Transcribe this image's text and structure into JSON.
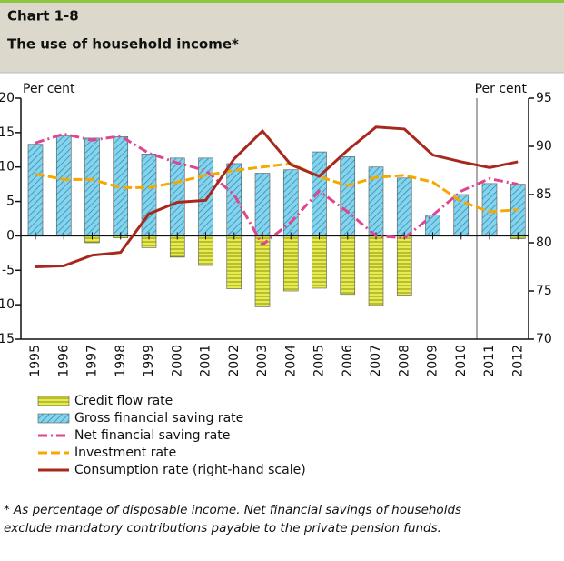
{
  "chart_data": {
    "type": "combo",
    "chart_number": "Chart 1-8",
    "title": "The use of household income*",
    "y_label": "Per cent",
    "y2_label": "Per cent",
    "footnote": [
      "* As percentage of disposable income. Net financial savings of households",
      "exclude mandatory contributions payable to the private pension funds."
    ],
    "categories": [
      "1995",
      "1996",
      "1997",
      "1998",
      "1999",
      "2000",
      "2001",
      "2002",
      "2003",
      "2004",
      "2005",
      "2006",
      "2007",
      "2008",
      "2009",
      "2010",
      "2011",
      "2012"
    ],
    "ylim": [
      -15,
      20
    ],
    "yticks": [
      -15,
      -10,
      -5,
      0,
      5,
      10,
      15,
      20
    ],
    "y2lim": [
      70,
      95
    ],
    "y2ticks": [
      70,
      75,
      80,
      85,
      90,
      95
    ],
    "series": [
      {
        "name": "Credit flow rate",
        "type": "bar",
        "color": "#e6ec4f",
        "values": [
          0.7,
          0.3,
          -1.0,
          -0.3,
          -1.7,
          -3.1,
          -4.3,
          -7.7,
          -10.3,
          -8.0,
          -7.6,
          -8.5,
          -10.1,
          -8.6,
          0.3,
          1.8,
          1.7,
          -0.4
        ]
      },
      {
        "name": "Gross financial saving rate",
        "type": "bar",
        "color": "#86d3ec",
        "values": [
          13.3,
          14.5,
          14.2,
          14.4,
          11.9,
          11.3,
          11.3,
          10.5,
          9.1,
          9.6,
          12.2,
          11.5,
          10.0,
          8.4,
          3.0,
          6.0,
          7.6,
          7.5
        ]
      },
      {
        "name": "Net financial saving rate",
        "type": "line",
        "dash": "dash-dot",
        "color": "#e0458f",
        "values": [
          13.5,
          14.8,
          13.9,
          14.5,
          12.0,
          10.6,
          9.5,
          6.0,
          -1.3,
          2.0,
          6.5,
          3.5,
          0.0,
          -0.3,
          3.0,
          6.5,
          8.3,
          7.5
        ]
      },
      {
        "name": "Investment rate",
        "type": "line",
        "dash": "dashed",
        "color": "#f5a800",
        "values": [
          9.0,
          8.2,
          8.2,
          7.0,
          7.0,
          7.8,
          8.8,
          9.5,
          10.0,
          10.5,
          8.6,
          7.3,
          8.5,
          8.8,
          7.8,
          5.0,
          3.5,
          3.8
        ]
      },
      {
        "name": "Consumption rate (right-hand scale)",
        "type": "line",
        "dash": "solid",
        "axis": "y2",
        "color": "#a8281e",
        "values": [
          77.5,
          77.6,
          78.7,
          79.0,
          83.0,
          84.2,
          84.4,
          88.7,
          91.6,
          88.1,
          86.9,
          89.6,
          92.0,
          91.8,
          89.1,
          88.4,
          87.8,
          88.4
        ]
      }
    ]
  }
}
